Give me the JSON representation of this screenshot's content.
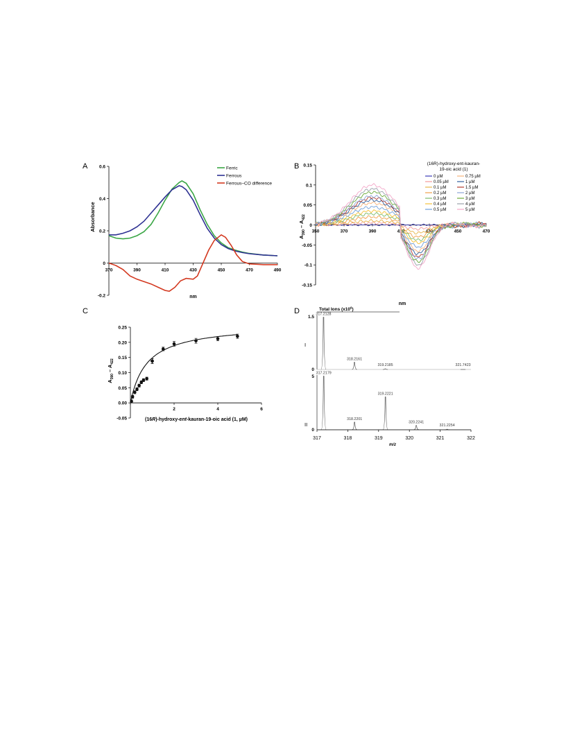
{
  "panels": {
    "A": {
      "letter": "A"
    },
    "B": {
      "letter": "B"
    },
    "C": {
      "letter": "C"
    },
    "D": {
      "letter": "D"
    }
  },
  "chart_data": [
    {
      "id": "A",
      "type": "line",
      "xlabel": "nm",
      "ylabel": "Absorbance",
      "xlim": [
        370,
        490
      ],
      "ylim": [
        -0.2,
        0.6
      ],
      "x_ticks": [
        "370",
        "390",
        "410",
        "430",
        "450",
        "470",
        "490"
      ],
      "y_ticks": [
        "-0.2",
        "0",
        "0.2",
        "0.4",
        "0.6"
      ],
      "legend_position": "top-right",
      "series": [
        {
          "name": "Ferric",
          "color": "#3aa645",
          "points": [
            [
              370,
              0.17
            ],
            [
              375,
              0.155
            ],
            [
              380,
              0.15
            ],
            [
              385,
              0.155
            ],
            [
              390,
              0.17
            ],
            [
              395,
              0.195
            ],
            [
              400,
              0.24
            ],
            [
              405,
              0.31
            ],
            [
              410,
              0.39
            ],
            [
              415,
              0.46
            ],
            [
              420,
              0.5
            ],
            [
              422,
              0.51
            ],
            [
              425,
              0.495
            ],
            [
              430,
              0.43
            ],
            [
              435,
              0.33
            ],
            [
              440,
              0.24
            ],
            [
              445,
              0.17
            ],
            [
              450,
              0.125
            ],
            [
              455,
              0.095
            ],
            [
              460,
              0.08
            ],
            [
              465,
              0.068
            ],
            [
              470,
              0.06
            ],
            [
              480,
              0.05
            ],
            [
              490,
              0.045
            ]
          ]
        },
        {
          "name": "Ferrous",
          "color": "#2e3192",
          "points": [
            [
              370,
              0.175
            ],
            [
              375,
              0.175
            ],
            [
              380,
              0.185
            ],
            [
              385,
              0.2
            ],
            [
              390,
              0.225
            ],
            [
              395,
              0.26
            ],
            [
              400,
              0.31
            ],
            [
              405,
              0.36
            ],
            [
              410,
              0.41
            ],
            [
              415,
              0.455
            ],
            [
              420,
              0.48
            ],
            [
              422,
              0.475
            ],
            [
              425,
              0.455
            ],
            [
              430,
              0.39
            ],
            [
              435,
              0.3
            ],
            [
              440,
              0.215
            ],
            [
              445,
              0.155
            ],
            [
              450,
              0.115
            ],
            [
              455,
              0.09
            ],
            [
              460,
              0.075
            ],
            [
              465,
              0.065
            ],
            [
              470,
              0.058
            ],
            [
              480,
              0.05
            ],
            [
              490,
              0.045
            ]
          ]
        },
        {
          "name": "Ferrous–CO difference",
          "color": "#d3381f",
          "points": [
            [
              370,
              0
            ],
            [
              375,
              -0.015
            ],
            [
              380,
              -0.04
            ],
            [
              385,
              -0.08
            ],
            [
              390,
              -0.1
            ],
            [
              395,
              -0.115
            ],
            [
              400,
              -0.13
            ],
            [
              405,
              -0.15
            ],
            [
              410,
              -0.17
            ],
            [
              413,
              -0.175
            ],
            [
              417,
              -0.15
            ],
            [
              421,
              -0.11
            ],
            [
              425,
              -0.095
            ],
            [
              430,
              -0.1
            ],
            [
              433,
              -0.08
            ],
            [
              437,
              0
            ],
            [
              441,
              0.08
            ],
            [
              445,
              0.14
            ],
            [
              450,
              0.175
            ],
            [
              453,
              0.16
            ],
            [
              457,
              0.11
            ],
            [
              461,
              0.05
            ],
            [
              465,
              0.01
            ],
            [
              470,
              -0.005
            ],
            [
              480,
              -0.01
            ],
            [
              490,
              -0.01
            ]
          ]
        }
      ]
    },
    {
      "id": "B",
      "type": "line",
      "xlabel": "nm",
      "ylabel": "A390 – A422",
      "ylabel_parts": {
        "a1": "A",
        "s1": "390",
        "dash": " – A",
        "s2": "422"
      },
      "xlim": [
        350,
        470
      ],
      "ylim": [
        -0.15,
        0.15
      ],
      "x_ticks": [
        "350",
        "370",
        "390",
        "410",
        "430",
        "450",
        "470"
      ],
      "y_ticks": [
        "0.15",
        "0.1",
        "0.05",
        "0",
        "-0.05",
        "-0.1",
        "-0.15"
      ],
      "legend_title": [
        "(16R)-hydroxy-ent-kauran-",
        "19-oic acid (1)"
      ],
      "legend_position": "top-right",
      "peak_x": 390,
      "trough_x": 422,
      "zero_x": 409,
      "series": [
        {
          "name": "0 µM",
          "color": "#3b3bb8",
          "peak": 0.0,
          "trough": 0.0
        },
        {
          "name": "0.05 µM",
          "color": "#f29a9a",
          "peak": 0.005,
          "trough": -0.01
        },
        {
          "name": "0.1 µM",
          "color": "#e6b54a",
          "peak": 0.01,
          "trough": -0.02
        },
        {
          "name": "0.2 µM",
          "color": "#f0a04a",
          "peak": 0.02,
          "trough": -0.03
        },
        {
          "name": "0.3 µM",
          "color": "#7dbb6a",
          "peak": 0.028,
          "trough": -0.038
        },
        {
          "name": "0.4 µM",
          "color": "#f5c238",
          "peak": 0.035,
          "trough": -0.045
        },
        {
          "name": "0.5 µM",
          "color": "#6f9ed8",
          "peak": 0.045,
          "trough": -0.055
        },
        {
          "name": "0.75 µM",
          "color": "#f7b37a",
          "peak": 0.055,
          "trough": -0.065
        },
        {
          "name": "1 µM",
          "color": "#2f5e9e",
          "peak": 0.062,
          "trough": -0.072
        },
        {
          "name": "1.5 µM",
          "color": "#b23a2a",
          "peak": 0.068,
          "trough": -0.08
        },
        {
          "name": "2 µM",
          "color": "#8aa4d6",
          "peak": 0.072,
          "trough": -0.085
        },
        {
          "name": "3 µM",
          "color": "#6aaa3a",
          "peak": 0.082,
          "trough": -0.092
        },
        {
          "name": "4 µM",
          "color": "#9aa0aa",
          "peak": 0.09,
          "trough": -0.1
        },
        {
          "name": "5 µM",
          "color": "#f3a6c8",
          "peak": 0.1,
          "trough": -0.108
        }
      ]
    },
    {
      "id": "C",
      "type": "scatter",
      "xlabel_parts": {
        "p1": "(16",
        "it1": "R",
        "p2": ")-hydroxy-",
        "it2": "ent",
        "p3": "-kauran-19-oic acid (1, µM)"
      },
      "ylabel_parts": {
        "a1": "A",
        "s1": "390",
        "dash": " – A",
        "s2": "422"
      },
      "xlim": [
        0,
        6
      ],
      "ylim": [
        -0.05,
        0.25
      ],
      "x_ticks": [
        "0",
        "2",
        "4",
        "6"
      ],
      "y_ticks": [
        "-0.05",
        "0.00",
        "0.05",
        "0.10",
        "0.15",
        "0.20",
        "0.25"
      ],
      "fit": {
        "bmax": 0.26,
        "kd": 0.75
      },
      "points": [
        {
          "x": 0.05,
          "y": 0.005,
          "err": 0.005
        },
        {
          "x": 0.1,
          "y": 0.02,
          "err": 0.005
        },
        {
          "x": 0.2,
          "y": 0.035,
          "err": 0.005
        },
        {
          "x": 0.3,
          "y": 0.045,
          "err": 0.005
        },
        {
          "x": 0.4,
          "y": 0.057,
          "err": 0.005
        },
        {
          "x": 0.5,
          "y": 0.068,
          "err": 0.005
        },
        {
          "x": 0.6,
          "y": 0.075,
          "err": 0.005
        },
        {
          "x": 0.75,
          "y": 0.08,
          "err": 0.005
        },
        {
          "x": 1.0,
          "y": 0.138,
          "err": 0.008
        },
        {
          "x": 1.0,
          "y": 0.138,
          "err": 0.008
        },
        {
          "x": 1.5,
          "y": 0.178,
          "err": 0.006
        },
        {
          "x": 2.0,
          "y": 0.195,
          "err": 0.008
        },
        {
          "x": 3.0,
          "y": 0.205,
          "err": 0.008
        },
        {
          "x": 4.0,
          "y": 0.212,
          "err": 0.007
        },
        {
          "x": 4.9,
          "y": 0.22,
          "err": 0.007
        }
      ]
    },
    {
      "id": "D",
      "type": "bar",
      "title_parts": {
        "t": "Total Ions (x10",
        "sup": "6",
        "end": ")"
      },
      "xlabel": "m/z",
      "xlim": [
        317,
        322
      ],
      "x_ticks": [
        "317",
        "318",
        "319",
        "320",
        "321",
        "322"
      ],
      "subplots": [
        {
          "label": "I",
          "ymax_label": "1.5",
          "ymin_label": "0",
          "ymax": 1.5,
          "peaks": [
            {
              "mz": 317.2128,
              "label": "317.2128",
              "height": 1.45
            },
            {
              "mz": 318.2161,
              "label": "318.2161",
              "height": 0.2
            },
            {
              "mz": 319.2185,
              "label": "319.2185",
              "height": 0.02
            },
            {
              "mz": 321.7423,
              "label": "321.7423",
              "height": 0.0
            }
          ]
        },
        {
          "label": "II",
          "ymax_label": "5",
          "ymin_label": "0",
          "ymax": 5,
          "peaks": [
            {
              "mz": 317.2179,
              "label": "317.2179",
              "height": 4.9
            },
            {
              "mz": 318.2201,
              "label": "318.2201",
              "height": 0.7
            },
            {
              "mz": 319.2221,
              "label": "319.2221",
              "height": 3.0
            },
            {
              "mz": 320.2241,
              "label": "320.2241",
              "height": 0.4
            },
            {
              "mz": 321.2254,
              "label": "321.2254",
              "height": 0.05
            }
          ]
        }
      ]
    }
  ]
}
